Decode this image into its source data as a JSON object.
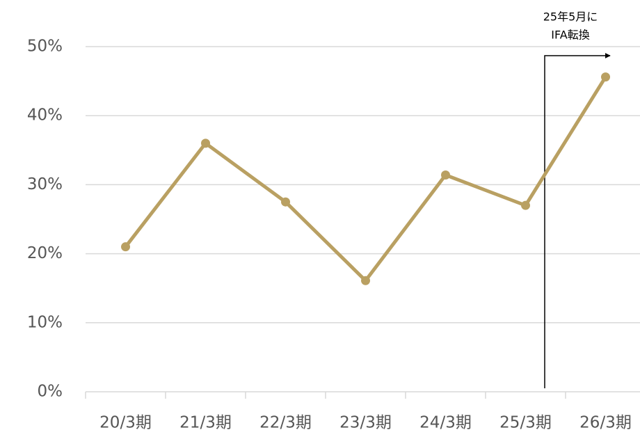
{
  "chart_data": {
    "type": "line",
    "categories": [
      "20/3期",
      "21/3期",
      "22/3期",
      "23/3期",
      "24/3期",
      "25/3期",
      "26/3期"
    ],
    "series": [
      {
        "color": "#b9a062",
        "values": [
          21,
          36,
          27.5,
          16.1,
          31.4,
          27,
          45.6
        ]
      }
    ],
    "ylim": [
      0,
      50
    ],
    "yticks": [
      {
        "value": 0,
        "label": "0%"
      },
      {
        "value": 10,
        "label": "10%"
      },
      {
        "value": 20,
        "label": "20%"
      },
      {
        "value": 30,
        "label": "30%"
      },
      {
        "value": 40,
        "label": "40%"
      },
      {
        "value": 50,
        "label": "50%"
      }
    ],
    "grid": true,
    "annotation": {
      "lines": [
        "25年5月に",
        "IFA転換"
      ]
    }
  }
}
